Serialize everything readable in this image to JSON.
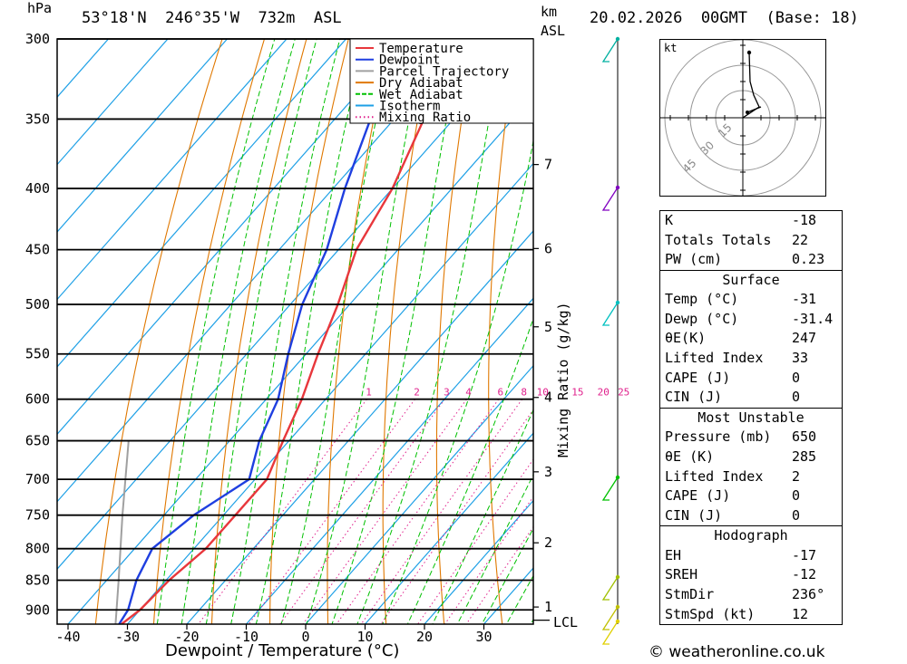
{
  "header": {
    "location": "53°18'N  246°35'W  732m  ASL",
    "datetime": "20.02.2026  00GMT  (Base: 18)",
    "pressure_unit": "hPa",
    "height_unit_km": "km",
    "height_unit_asl": "ASL"
  },
  "legend": [
    {
      "label": "Temperature",
      "color": "#e8373c"
    },
    {
      "label": "Dewpoint",
      "color": "#1f3fe0"
    },
    {
      "label": "Parcel Trajectory",
      "color": "#a0a0a0"
    },
    {
      "label": "Dry Adiabat",
      "color": "#e07800"
    },
    {
      "label": "Wet Adiabat",
      "color": "#00c000"
    },
    {
      "label": "Isotherm",
      "color": "#1ea0e6"
    },
    {
      "label": "Mixing Ratio",
      "color": "#e0208c"
    }
  ],
  "axes": {
    "xlabel": "Dewpoint / Temperature (°C)",
    "mixing_ratio_label": "Mixing Ratio (g/kg)",
    "lcl_label": "LCL"
  },
  "chart_data": {
    "type": "line",
    "pressure_levels": [
      300,
      350,
      400,
      450,
      500,
      550,
      600,
      650,
      700,
      750,
      800,
      850,
      900
    ],
    "temperature_ticks": [
      -40,
      -30,
      -20,
      -10,
      0,
      10,
      20,
      30
    ],
    "height_ticks_km": [
      {
        "label": "7",
        "p": 382
      },
      {
        "label": "6",
        "p": 449
      },
      {
        "label": "5",
        "p": 522
      },
      {
        "label": "4",
        "p": 598
      },
      {
        "label": "3",
        "p": 690
      },
      {
        "label": "2",
        "p": 791
      },
      {
        "label": "1",
        "p": 895
      }
    ],
    "lcl_pressure": 918,
    "mixing_ratio_labels": [
      "1",
      "2",
      "3",
      "4",
      "6",
      "8",
      "10",
      "15",
      "20",
      "25"
    ],
    "mixing_ratio_values": [
      1,
      2,
      3,
      4,
      6,
      8,
      10,
      15,
      20,
      25
    ],
    "series": [
      {
        "name": "Temperature",
        "color": "#e8373c",
        "points": [
          [
            925,
            -31
          ],
          [
            900,
            -30
          ],
          [
            850,
            -29.5
          ],
          [
            800,
            -28
          ],
          [
            750,
            -28
          ],
          [
            700,
            -28
          ],
          [
            650,
            -31
          ],
          [
            600,
            -34
          ],
          [
            550,
            -38
          ],
          [
            500,
            -42
          ],
          [
            450,
            -47
          ],
          [
            400,
            -50
          ],
          [
            350,
            -55
          ],
          [
            320,
            -54
          ],
          [
            300,
            -54
          ]
        ]
      },
      {
        "name": "Dewpoint",
        "color": "#1f3fe0",
        "points": [
          [
            925,
            -31.4
          ],
          [
            900,
            -32
          ],
          [
            850,
            -35
          ],
          [
            800,
            -37
          ],
          [
            750,
            -35
          ],
          [
            700,
            -31
          ],
          [
            650,
            -35
          ],
          [
            600,
            -38
          ],
          [
            550,
            -43
          ],
          [
            500,
            -48
          ],
          [
            450,
            -52
          ],
          [
            400,
            -58
          ],
          [
            350,
            -64
          ],
          [
            300,
            -68
          ]
        ]
      },
      {
        "name": "Parcel Trajectory",
        "color": "#a0a0a0",
        "points": [
          [
            925,
            -32
          ],
          [
            850,
            -38
          ],
          [
            750,
            -47
          ],
          [
            650,
            -57
          ]
        ]
      }
    ],
    "x_range": [
      -40,
      40
    ],
    "p_range": [
      300,
      925
    ]
  },
  "hodograph": {
    "unit": "kt",
    "ring_labels": [
      "15",
      "30",
      "45"
    ]
  },
  "indices": {
    "top": [
      {
        "k": "K",
        "v": "-18"
      },
      {
        "k": "Totals Totals",
        "v": "22"
      },
      {
        "k": "PW (cm)",
        "v": "0.23"
      }
    ],
    "surface_title": "Surface",
    "surface": [
      {
        "k": "Temp (°C)",
        "v": "-31"
      },
      {
        "k": "Dewp (°C)",
        "v": "-31.4"
      },
      {
        "k": "θE(K)",
        "v": "247"
      },
      {
        "k": "Lifted Index",
        "v": "33"
      },
      {
        "k": "CAPE (J)",
        "v": "0"
      },
      {
        "k": "CIN (J)",
        "v": "0"
      }
    ],
    "mu_title": "Most Unstable",
    "mu": [
      {
        "k": "Pressure (mb)",
        "v": "650"
      },
      {
        "k": "θE (K)",
        "v": "285"
      },
      {
        "k": "Lifted Index",
        "v": "2"
      },
      {
        "k": "CAPE (J)",
        "v": "0"
      },
      {
        "k": "CIN (J)",
        "v": "0"
      }
    ],
    "hodo_title": "Hodograph",
    "hodo": [
      {
        "k": "EH",
        "v": "-17"
      },
      {
        "k": "SREH",
        "v": "-12"
      },
      {
        "k": "StmDir",
        "v": "236°"
      },
      {
        "k": "StmSpd (kt)",
        "v": "12"
      }
    ]
  },
  "credit": "© weatheronline.co.uk"
}
